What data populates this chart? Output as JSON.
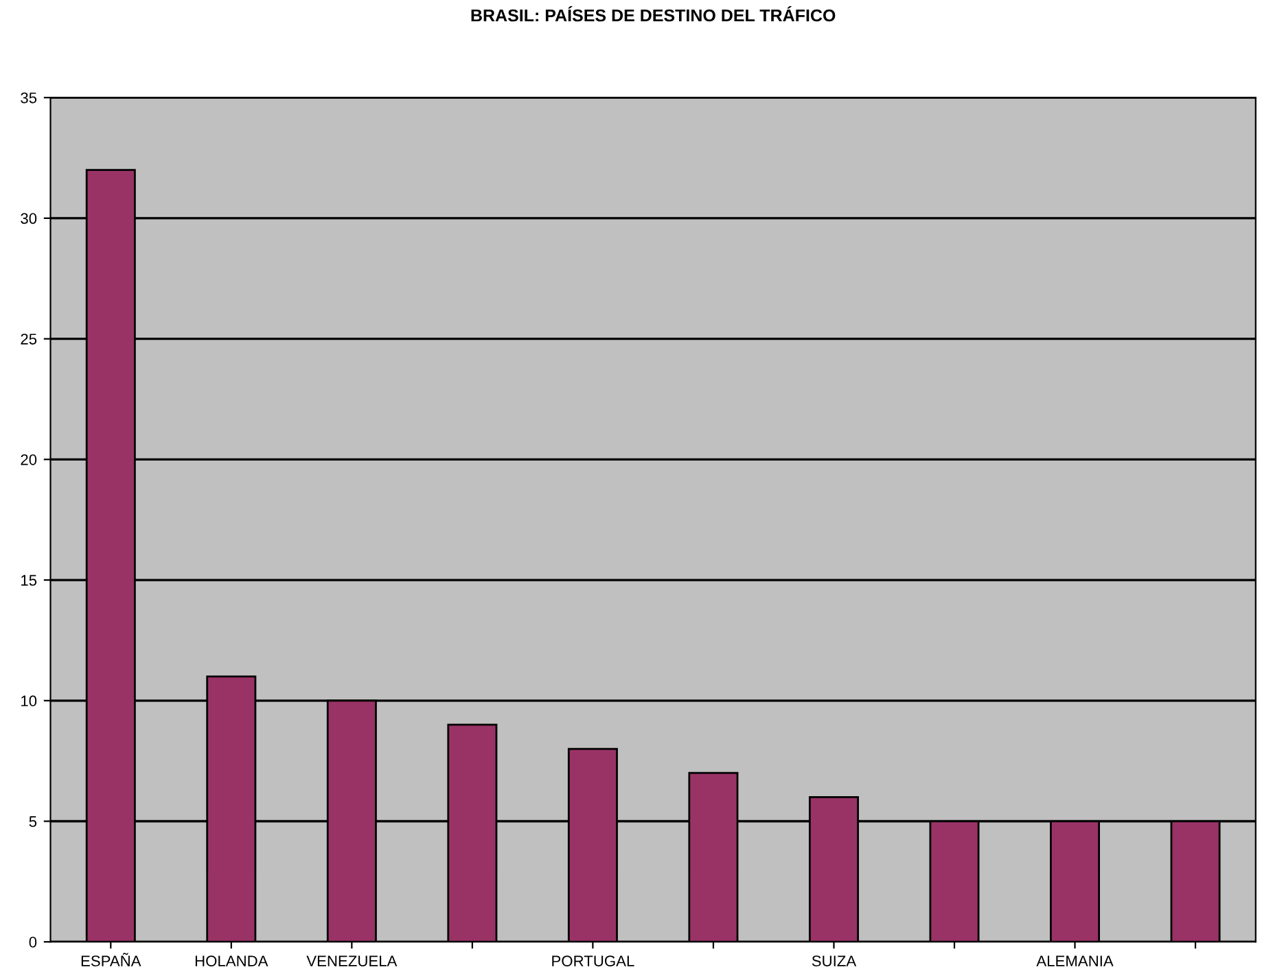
{
  "chart_data": {
    "type": "bar",
    "title": "BRASIL: PAÍSES DE DESTINO DEL TRÁFICO",
    "categories": [
      "ESPAÑA",
      "HOLANDA",
      "VENEZUELA",
      null,
      "PORTUGAL",
      null,
      "SUIZA",
      null,
      "ALEMANIA",
      null
    ],
    "values": [
      32,
      11,
      10,
      9,
      8,
      7,
      6,
      5,
      5,
      5
    ],
    "color": "#993366",
    "ylim": [
      0,
      35
    ],
    "yticks": [
      0,
      5,
      10,
      15,
      20,
      25,
      30,
      35
    ],
    "grid": "y"
  }
}
